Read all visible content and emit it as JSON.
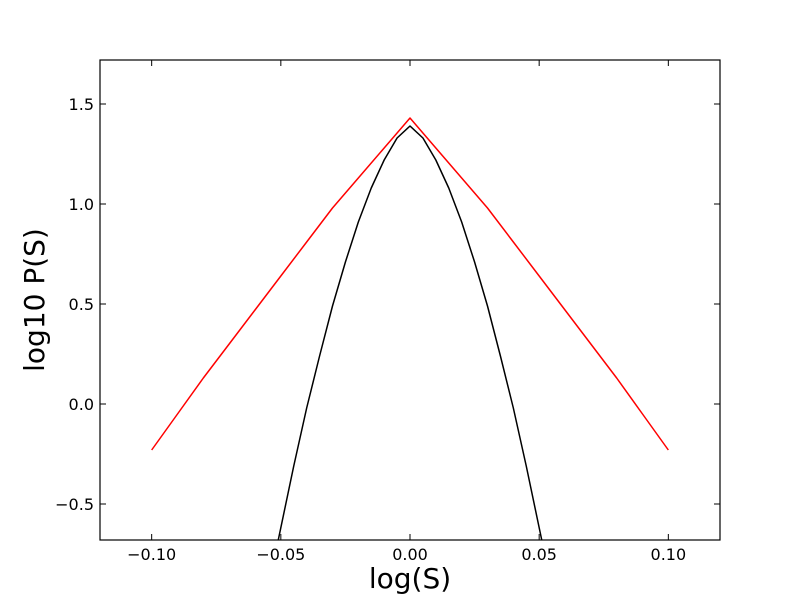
{
  "chart_data": {
    "type": "line",
    "title": "",
    "xlabel": "log(S)",
    "ylabel": "log10 P(S)",
    "xlim": [
      -0.12,
      0.12
    ],
    "ylim": [
      -0.68,
      1.72
    ],
    "xticks": [
      -0.1,
      -0.05,
      0.0,
      0.05,
      0.1
    ],
    "xtick_labels": [
      "−0.10",
      "−0.05",
      "0.00",
      "0.05",
      "0.10"
    ],
    "yticks": [
      -0.5,
      0.0,
      0.5,
      1.0,
      1.5
    ],
    "ytick_labels": [
      "−0.5",
      "0.0",
      "0.5",
      "1.0",
      "1.5"
    ],
    "grid": false,
    "legend": "none",
    "series": [
      {
        "color": "#ff0000",
        "x": [
          -0.1,
          -0.09,
          -0.08,
          -0.07,
          -0.06,
          -0.05,
          -0.04,
          -0.03,
          -0.02,
          -0.01,
          0.0,
          0.01,
          0.02,
          0.03,
          0.04,
          0.05,
          0.06,
          0.07,
          0.08,
          0.09,
          0.1
        ],
        "y": [
          -0.23,
          -0.05,
          0.13,
          0.3,
          0.47,
          0.64,
          0.81,
          0.98,
          1.13,
          1.28,
          1.43,
          1.28,
          1.13,
          0.98,
          0.81,
          0.64,
          0.47,
          0.3,
          0.13,
          -0.05,
          -0.23
        ]
      },
      {
        "color": "#000000",
        "x": [
          -0.051,
          -0.045,
          -0.04,
          -0.035,
          -0.03,
          -0.025,
          -0.02,
          -0.015,
          -0.01,
          -0.005,
          0.0,
          0.005,
          0.01,
          0.015,
          0.02,
          0.025,
          0.03,
          0.035,
          0.04,
          0.045,
          0.051
        ],
        "y": [
          -0.68,
          -0.31,
          -0.02,
          0.24,
          0.49,
          0.71,
          0.91,
          1.08,
          1.22,
          1.33,
          1.39,
          1.33,
          1.22,
          1.08,
          0.91,
          0.71,
          0.49,
          0.24,
          -0.02,
          -0.31,
          -0.68
        ]
      }
    ]
  }
}
